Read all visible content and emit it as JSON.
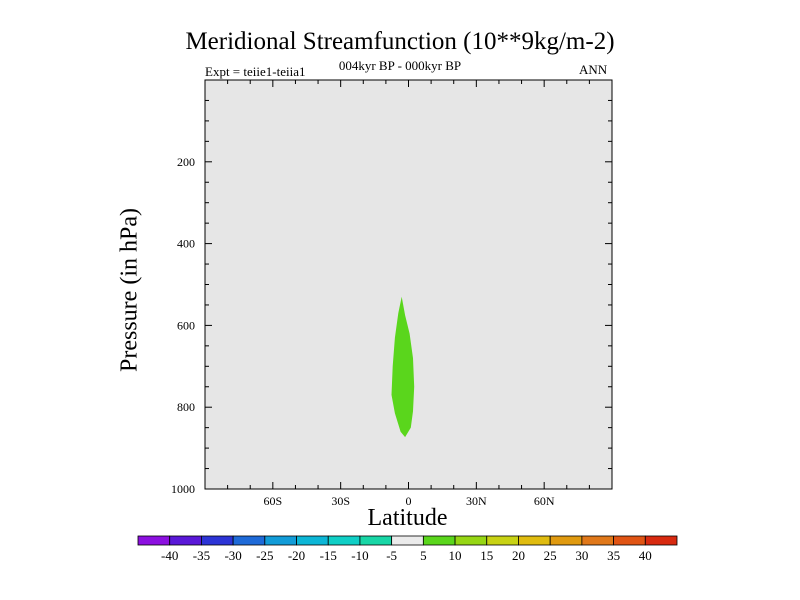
{
  "title": "Meridional Streamfunction (10**9kg/m-2)",
  "subtitle": "004kyr BP - 000kyr BP",
  "experiment_label": "Expt = teiie1-teiia1",
  "season_label": "ANN",
  "colors": {
    "plot_background": "#e6e6e6",
    "positive_fill": "#5ad61c"
  },
  "chart_data": {
    "type": "contour",
    "xlabel": "Latitude",
    "ylabel": "Pressure (in hPa)",
    "xlim": [
      -90,
      90
    ],
    "ylim": [
      1000,
      0
    ],
    "x_ticks": [
      {
        "value": -60,
        "label": "60S"
      },
      {
        "value": -30,
        "label": "30S"
      },
      {
        "value": 0,
        "label": "0"
      },
      {
        "value": 30,
        "label": "30N"
      },
      {
        "value": 60,
        "label": "60N"
      }
    ],
    "y_ticks": [
      {
        "value": 200,
        "label": "200"
      },
      {
        "value": 400,
        "label": "400"
      },
      {
        "value": 600,
        "label": "600"
      },
      {
        "value": 800,
        "label": "800"
      },
      {
        "value": 1000,
        "label": "1000"
      }
    ],
    "filled_regions": [
      {
        "level": "5 to 10",
        "color": "#5ad61c",
        "outline": [
          [
            -3,
            530
          ],
          [
            -1.5,
            575
          ],
          [
            0.5,
            620
          ],
          [
            2,
            680
          ],
          [
            2.5,
            750
          ],
          [
            2,
            810
          ],
          [
            1,
            850
          ],
          [
            -1.5,
            873
          ],
          [
            -3.5,
            860
          ],
          [
            -6,
            815
          ],
          [
            -7.5,
            770
          ],
          [
            -7,
            700
          ],
          [
            -6,
            630
          ],
          [
            -4.5,
            570
          ]
        ]
      }
    ],
    "colorbar": {
      "labels": [
        "-40",
        "-35",
        "-30",
        "-25",
        "-20",
        "-15",
        "-10",
        "-5",
        "5",
        "10",
        "15",
        "20",
        "25",
        "30",
        "35",
        "40"
      ],
      "colors": [
        "#8c10e0",
        "#5a18d8",
        "#2c34d6",
        "#1e6ad8",
        "#129cd8",
        "#0cb6d6",
        "#10cfc6",
        "#18d6a6",
        "#ebebeb",
        "#5ad61c",
        "#96d614",
        "#c8d214",
        "#e0bc10",
        "#e09a10",
        "#e0781a",
        "#e05414",
        "#d82a10"
      ]
    }
  }
}
